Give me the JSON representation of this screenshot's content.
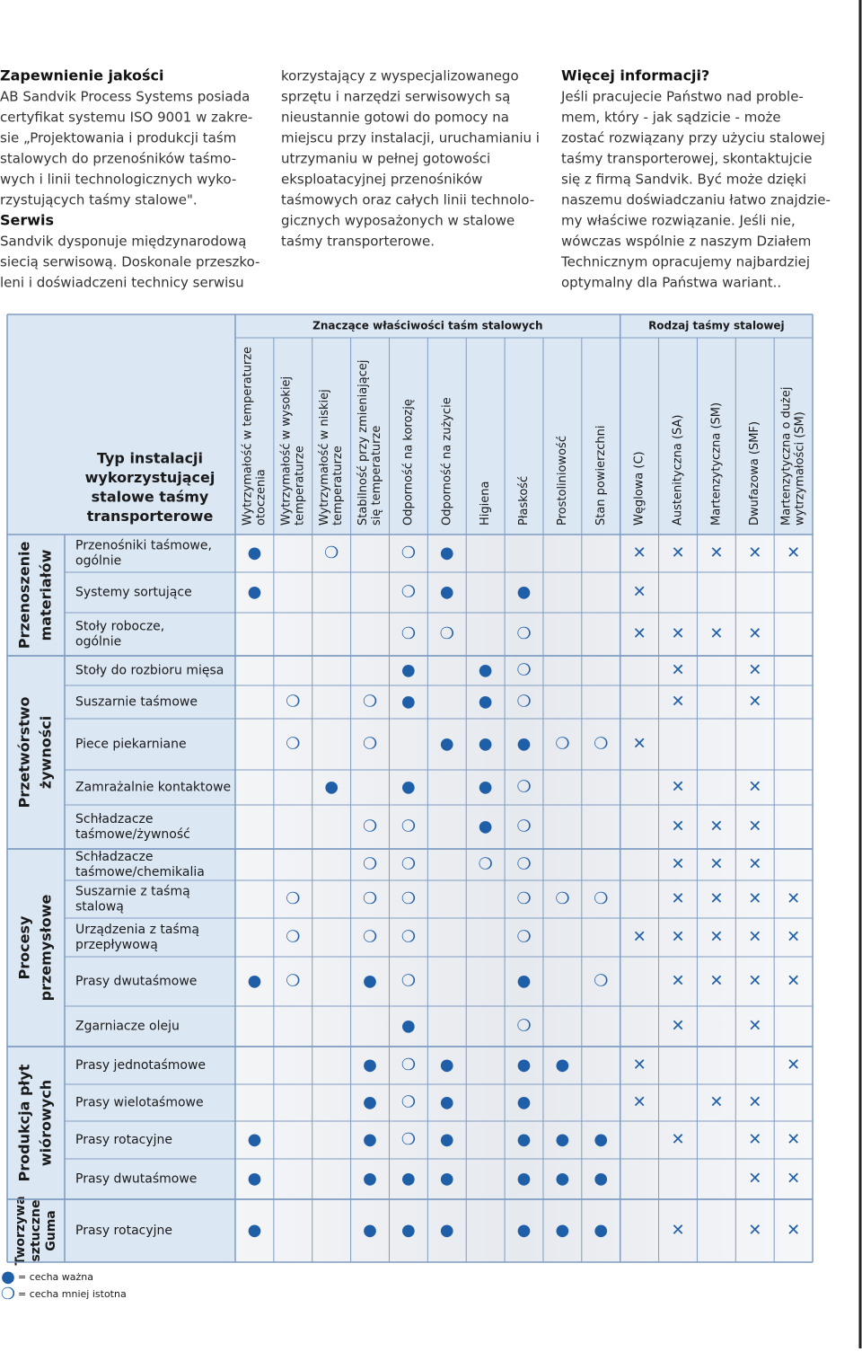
{
  "intro": [
    [
      {
        "heading": "Zapewnienie jakości",
        "lines": [
          "AB Sandvik Process Systems posiada",
          "certyfikat systemu ISO 9001 w zakre-",
          "sie „Projektowania i produkcji taśm",
          "stalowych do przenośników taśmo-",
          "wych i linii technologicznych wyko-",
          "rzystujących taśmy stalowe\"."
        ]
      },
      {
        "heading": "Serwis",
        "lines": [
          "Sandvik dysponuje międzynarodową",
          "siecią serwisową. Doskonale przeszko-",
          "leni i doświadczeni technicy serwisu"
        ]
      }
    ],
    [
      {
        "lines": [
          "korzystający z wyspecjalizowanego",
          "sprzętu i narzędzi serwisowych są",
          "nieustannie gotowi do pomocy na",
          "miejscu przy instalacji, uruchamianiu i",
          "utrzymaniu w pełnej gotowości",
          "eksploatacyjnej przenośników",
          "taśmowych oraz całych linii technolo-",
          "gicznych wyposażonych w stalowe",
          "taśmy transporterowe."
        ]
      }
    ],
    [
      {
        "heading": "Więcej informacji?",
        "lines": [
          "Jeśli pracujecie Państwo nad proble-",
          "mem, który - jak sądzicie - może",
          "zostać rozwiązany przy użyciu stalowej",
          "taśmy transporterowej, skontaktujcie",
          "się z firmą Sandvik. Być może dzięki",
          "naszemu doświadczaniu łatwo znajdzie-",
          "my właściwe rozwiązanie. Jeśli nie,",
          "wówczas wspólnie z naszym Działem",
          "Technicznym opracujemy najbardziej",
          "optymalny dla Państwa wariant.."
        ]
      }
    ]
  ],
  "table": {
    "group_headers": [
      "Znaczące właściwości taśm stalowych",
      "Rodzaj taśmy stalowej"
    ],
    "corner": [
      "Typ instalacji",
      "wykorzystującej",
      "stalowe taśmy",
      "transporterowe"
    ],
    "columns": [
      [
        "Wytrzymałość w temperaturze",
        "otoczenia"
      ],
      [
        "Wytrzymałość w wysokiej",
        "temperaturze"
      ],
      [
        "Wytrzymałość w niskiej",
        "temperaturze"
      ],
      [
        "Stabilność przy zmieniającej",
        "się temperaturze"
      ],
      [
        "Odporność na korozję"
      ],
      [
        "Odporność na zużycie"
      ],
      [
        "Higiena"
      ],
      [
        "Płaskość"
      ],
      [
        "Prostoliniowość"
      ],
      [
        "Stan powierzchni"
      ],
      [
        "Węglowa (C)"
      ],
      [
        "Austenityczna (SA)"
      ],
      [
        "Martenzytyczna (SM)"
      ],
      [
        "Dwufazowa (SMF)"
      ],
      [
        "Martenzytyczna o dużej",
        "wytrzymałości (SM)"
      ]
    ],
    "groups": [
      {
        "label": [
          "Przenoszenie",
          "materiałów"
        ],
        "rows": [
          {
            "label": [
              "Przenośniki taśmowe,",
              "ogólnie"
            ],
            "cells": [
              "●",
              null,
              "❍",
              null,
              "❍",
              "●",
              null,
              null,
              null,
              null,
              "✕",
              "✕",
              "✕",
              "✕",
              "✕"
            ]
          },
          {
            "label": [
              "Systemy sortujące"
            ],
            "cells": [
              "●",
              null,
              null,
              null,
              "❍",
              "●",
              null,
              "●",
              null,
              null,
              "✕",
              null,
              null,
              null,
              null
            ]
          },
          {
            "label": [
              "Stoły robocze,",
              "ogólnie"
            ],
            "cells": [
              null,
              null,
              null,
              null,
              "❍",
              "❍",
              null,
              "❍",
              null,
              null,
              "✕",
              "✕",
              "✕",
              "✕",
              null
            ]
          }
        ]
      },
      {
        "label": [
          "Przetwórstwo",
          "żywności"
        ],
        "rows": [
          {
            "label": [
              "Stoły do rozbioru mięsa"
            ],
            "cells": [
              null,
              null,
              null,
              null,
              "●",
              null,
              "●",
              "❍",
              null,
              null,
              null,
              "✕",
              null,
              "✕",
              null
            ]
          },
          {
            "label": [
              "Suszarnie taśmowe"
            ],
            "cells": [
              null,
              "❍",
              null,
              "❍",
              "●",
              null,
              "●",
              "❍",
              null,
              null,
              null,
              "✕",
              null,
              "✕",
              null
            ]
          },
          {
            "label": [
              "Piece piekarniane"
            ],
            "cells": [
              null,
              "❍",
              null,
              "❍",
              null,
              "●",
              "●",
              "●",
              "❍",
              "❍",
              "✕",
              null,
              null,
              null,
              null
            ]
          },
          {
            "label": [
              "Zamrażalnie kontaktowe"
            ],
            "cells": [
              null,
              null,
              "●",
              null,
              "●",
              null,
              "●",
              "❍",
              null,
              null,
              null,
              "✕",
              null,
              "✕",
              null
            ]
          },
          {
            "label": [
              "Schładzacze",
              "taśmowe/żywność"
            ],
            "cells": [
              null,
              null,
              null,
              "❍",
              "❍",
              null,
              "●",
              "❍",
              null,
              null,
              null,
              "✕",
              "✕",
              "✕",
              null
            ]
          }
        ]
      },
      {
        "label": [
          "Procesy",
          "przemysłowe"
        ],
        "rows": [
          {
            "label": [
              "Schładzacze",
              "taśmowe/chemikalia"
            ],
            "cells": [
              null,
              null,
              null,
              "❍",
              "❍",
              null,
              "❍",
              "❍",
              null,
              null,
              null,
              "✕",
              "✕",
              "✕",
              null
            ]
          },
          {
            "label": [
              "Suszarnie z taśmą",
              "stalową"
            ],
            "cells": [
              null,
              "❍",
              null,
              "❍",
              "❍",
              null,
              null,
              "❍",
              "❍",
              "❍",
              null,
              "✕",
              "✕",
              "✕",
              "✕"
            ]
          },
          {
            "label": [
              "Urządzenia z taśmą",
              "przepływową"
            ],
            "cells": [
              null,
              "❍",
              null,
              "❍",
              "❍",
              null,
              null,
              "❍",
              null,
              null,
              "✕",
              "✕",
              "✕",
              "✕",
              "✕"
            ]
          },
          {
            "label": [
              "Prasy dwutaśmowe"
            ],
            "cells": [
              "●",
              "❍",
              null,
              "●",
              "❍",
              null,
              null,
              "●",
              null,
              "❍",
              null,
              "✕",
              "✕",
              "✕",
              "✕"
            ]
          },
          {
            "label": [
              "Zgarniacze oleju"
            ],
            "cells": [
              null,
              null,
              null,
              null,
              "●",
              null,
              null,
              "❍",
              null,
              null,
              null,
              "✕",
              null,
              "✕",
              null
            ]
          }
        ]
      },
      {
        "label": [
          "Produkcja płyt",
          "wiórowych"
        ],
        "rows": [
          {
            "label": [
              "Prasy jednotaśmowe"
            ],
            "cells": [
              null,
              null,
              null,
              "●",
              "❍",
              "●",
              null,
              "●",
              "●",
              null,
              "✕",
              null,
              null,
              null,
              "✕"
            ]
          },
          {
            "label": [
              "Prasy wielotaśmowe"
            ],
            "cells": [
              null,
              null,
              null,
              "●",
              "❍",
              "●",
              null,
              "●",
              null,
              null,
              "✕",
              null,
              "✕",
              "✕",
              null
            ]
          },
          {
            "label": [
              "Prasy rotacyjne"
            ],
            "cells": [
              "●",
              null,
              null,
              "●",
              "❍",
              "●",
              null,
              "●",
              "●",
              "●",
              null,
              "✕",
              null,
              "✕",
              "✕"
            ]
          },
          {
            "label": [
              "Prasy dwutaśmowe"
            ],
            "cells": [
              "●",
              null,
              null,
              "●",
              "●",
              "●",
              null,
              "●",
              "●",
              "●",
              null,
              null,
              null,
              "✕",
              "✕"
            ]
          }
        ]
      },
      {
        "label": [
          "Tworzywa",
          "sztuczne",
          "Guma"
        ],
        "rows": [
          {
            "label": [
              "Prasy rotacyjne"
            ],
            "cells": [
              "●",
              null,
              null,
              "●",
              "●",
              "●",
              null,
              "●",
              "●",
              "●",
              null,
              "✕",
              null,
              "✕",
              "✕"
            ]
          }
        ]
      }
    ]
  },
  "legend": [
    {
      "symbol": "●",
      "text": "= cecha ważna"
    },
    {
      "symbol": "❍",
      "text": "= cecha mniej istotna"
    }
  ]
}
